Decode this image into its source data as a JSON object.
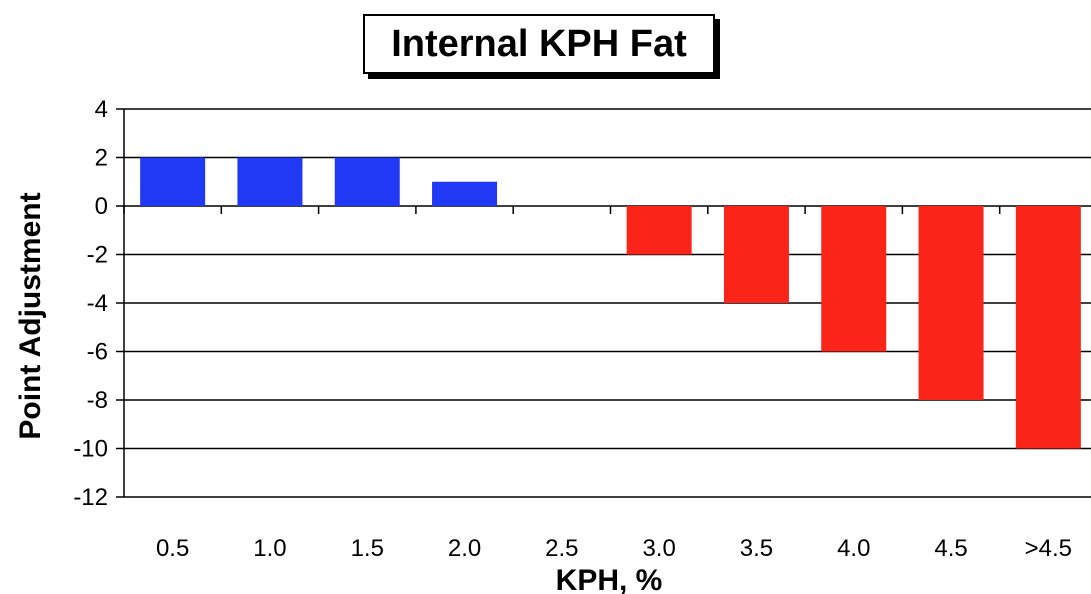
{
  "chart_data": {
    "type": "bar",
    "title": "Internal KPH Fat",
    "xlabel": "KPH, %",
    "ylabel": "Point Adjustment",
    "categories": [
      "0.5",
      "1.0",
      "1.5",
      "2.0",
      "2.5",
      "3.0",
      "3.5",
      "4.0",
      "4.5",
      ">4.5"
    ],
    "values": [
      2,
      2,
      2,
      1,
      0,
      -2,
      -4,
      -6,
      -8,
      -10
    ],
    "ylim": [
      -12,
      4
    ],
    "yticks": [
      4,
      2,
      0,
      -2,
      -4,
      -6,
      -8,
      -10,
      -12
    ],
    "grid": true,
    "legend": "none",
    "colors": {
      "positive": "#2138f5",
      "negative": "#fb2418",
      "grid": "#000000"
    }
  }
}
